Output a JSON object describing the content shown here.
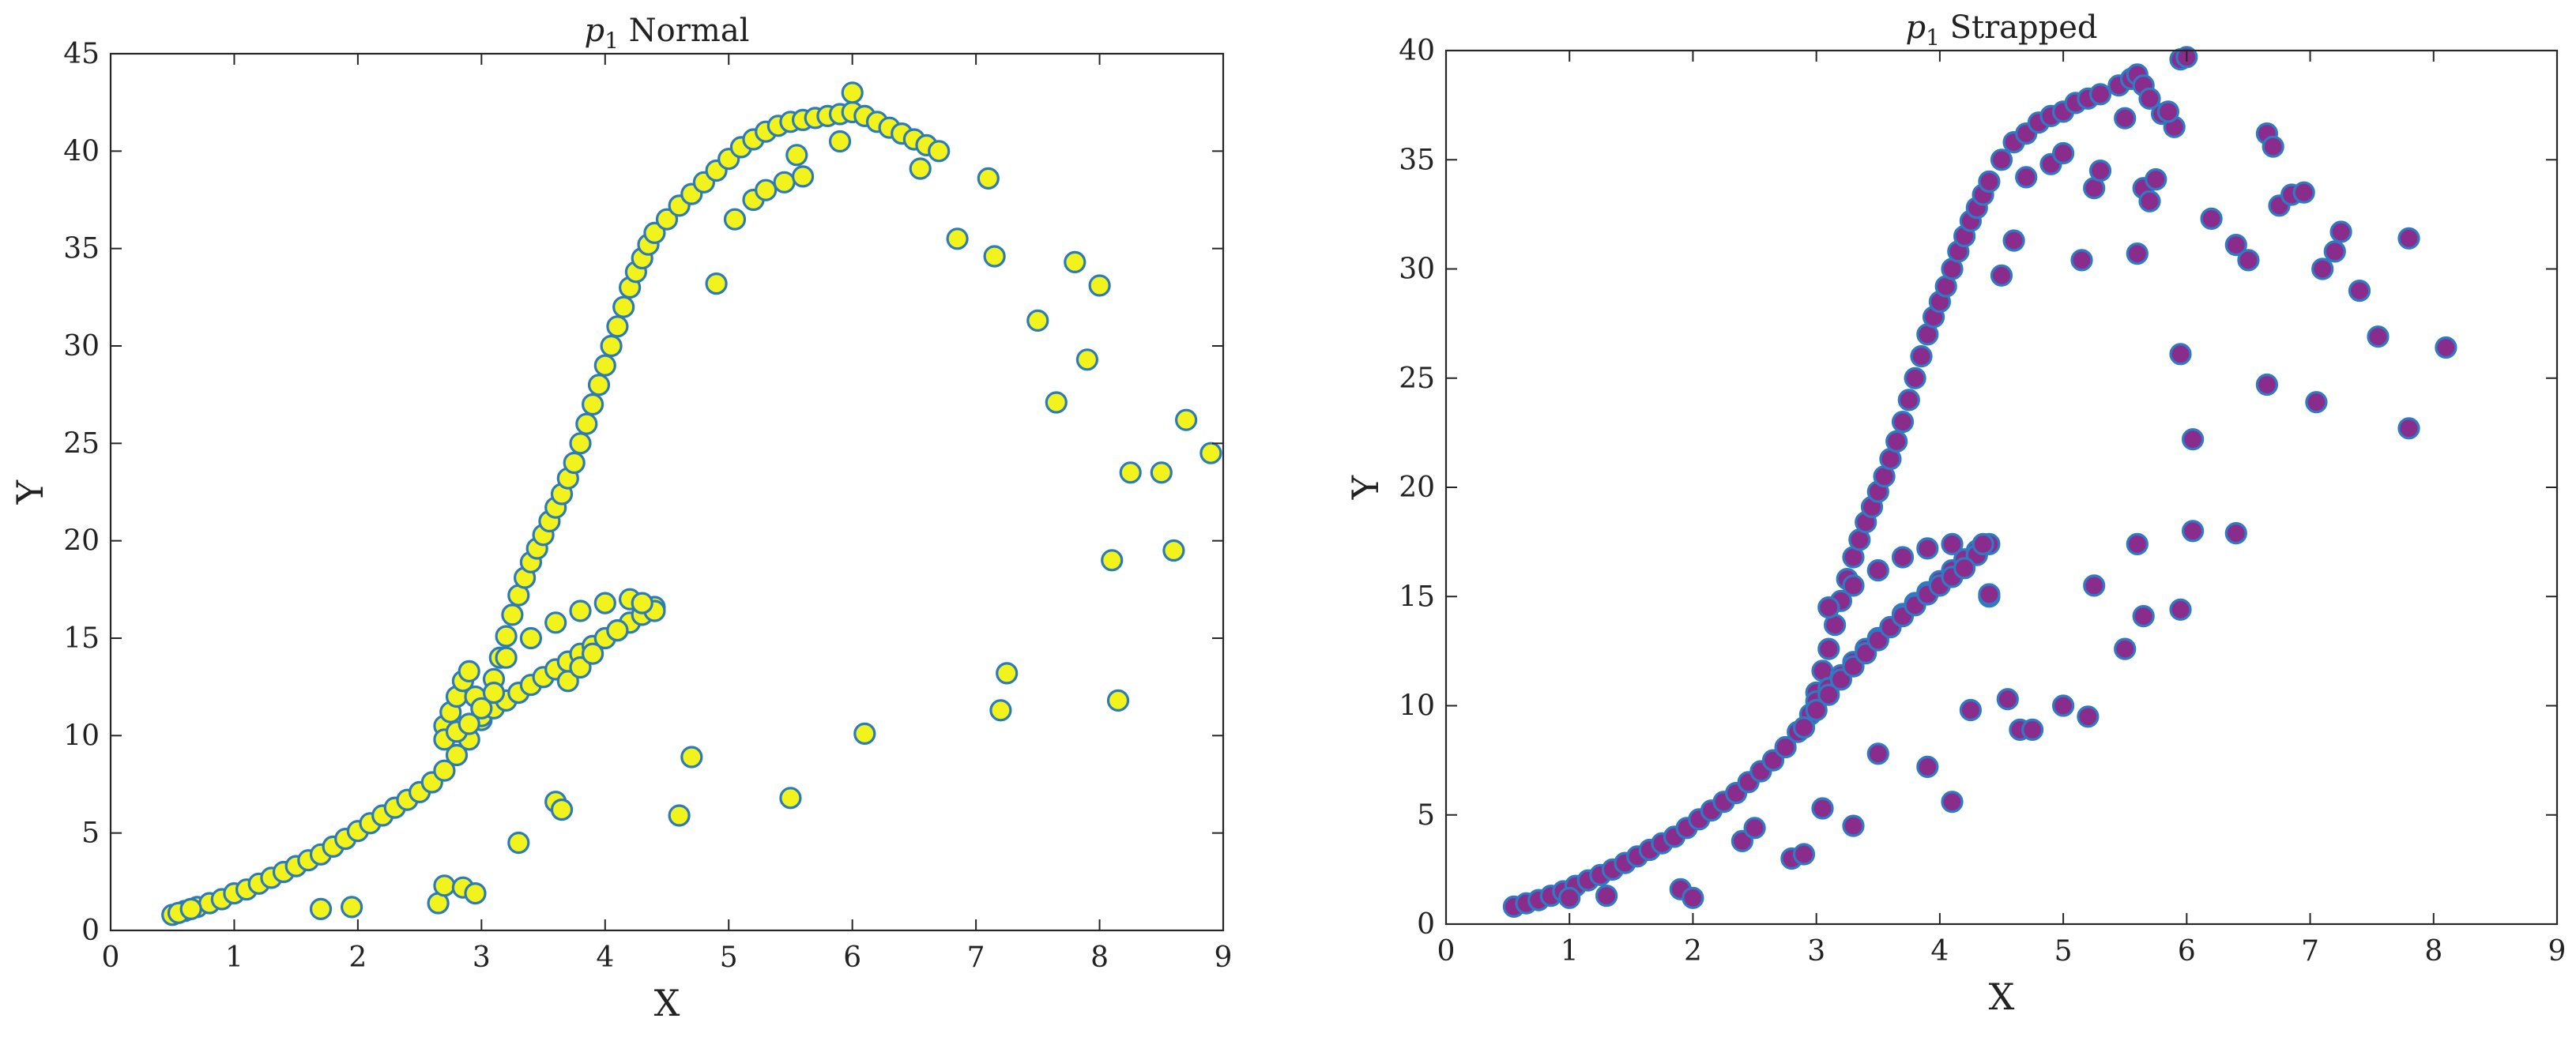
{
  "chart_data": [
    {
      "type": "scatter",
      "title_symbol": "p",
      "title_sub": "1",
      "title_rest": " Normal",
      "xlabel": "X",
      "ylabel": "Y",
      "xlim": [
        0,
        9
      ],
      "ylim": [
        0,
        45
      ],
      "xticks": [
        0,
        1,
        2,
        3,
        4,
        5,
        6,
        7,
        8,
        9
      ],
      "yticks": [
        0,
        5,
        10,
        15,
        20,
        25,
        30,
        35,
        40,
        45
      ],
      "marker_fill": "#f2f21c",
      "marker_edge": "#2b7bb9",
      "x": [
        0.5,
        0.6,
        0.7,
        0.8,
        0.9,
        1.0,
        1.1,
        1.2,
        1.3,
        1.4,
        1.5,
        1.6,
        1.7,
        1.8,
        1.9,
        2.0,
        2.1,
        2.2,
        2.3,
        2.4,
        2.5,
        2.6,
        2.7,
        2.8,
        2.9,
        3.0,
        3.05,
        3.1,
        3.15,
        3.2,
        3.25,
        3.3,
        3.35,
        3.4,
        3.45,
        3.5,
        3.55,
        3.6,
        3.65,
        3.7,
        3.75,
        3.8,
        3.85,
        3.9,
        3.95,
        4.0,
        4.05,
        4.1,
        4.15,
        4.2,
        4.25,
        4.3,
        4.35,
        4.4,
        4.5,
        4.6,
        4.7,
        4.8,
        4.9,
        5.0,
        5.1,
        5.2,
        5.3,
        5.4,
        5.5,
        5.6,
        5.7,
        5.8,
        5.9,
        6.0,
        6.1,
        6.2,
        6.3,
        6.4,
        6.5,
        6.6,
        6.7,
        3.0,
        3.1,
        3.2,
        3.3,
        3.4,
        3.5,
        3.6,
        3.7,
        3.8,
        3.9,
        4.0,
        4.1,
        4.2,
        4.3,
        4.4,
        3.2,
        3.4,
        3.6,
        3.8,
        4.0,
        4.2,
        4.4,
        2.7,
        2.75,
        2.8,
        2.85,
        2.9,
        2.95,
        2.7,
        2.8,
        2.9,
        3.0,
        3.1,
        3.7,
        3.8,
        3.9,
        4.1,
        4.3,
        0.55,
        0.65,
        1.7,
        1.95,
        2.65,
        2.7,
        2.85,
        2.95,
        3.3,
        3.6,
        3.65,
        4.6,
        4.7,
        5.5,
        6.1,
        6.55,
        6.85,
        7.1,
        7.15,
        7.2,
        7.25,
        7.5,
        7.65,
        7.8,
        7.9,
        8.0,
        8.1,
        8.15,
        8.25,
        8.5,
        8.6,
        8.7,
        8.9,
        5.2,
        5.45,
        5.6,
        5.9,
        6.0,
        4.9,
        5.05,
        5.3,
        5.55
      ],
      "y": [
        0.8,
        1.0,
        1.2,
        1.4,
        1.6,
        1.9,
        2.1,
        2.4,
        2.7,
        3.0,
        3.3,
        3.6,
        3.9,
        4.3,
        4.7,
        5.1,
        5.5,
        5.9,
        6.3,
        6.7,
        7.1,
        7.6,
        8.2,
        9.0,
        9.8,
        10.8,
        11.8,
        12.9,
        14.0,
        15.1,
        16.2,
        17.2,
        18.1,
        18.9,
        19.6,
        20.3,
        21.0,
        21.7,
        22.4,
        23.2,
        24.0,
        25.0,
        26.0,
        27.0,
        28.0,
        29.0,
        30.0,
        31.0,
        32.0,
        33.0,
        33.8,
        34.5,
        35.2,
        35.8,
        36.5,
        37.2,
        37.8,
        38.4,
        39.0,
        39.6,
        40.2,
        40.6,
        41.0,
        41.3,
        41.5,
        41.6,
        41.7,
        41.8,
        41.9,
        42.0,
        41.8,
        41.5,
        41.2,
        40.9,
        40.6,
        40.3,
        40.0,
        11.0,
        11.4,
        11.8,
        12.2,
        12.6,
        13.0,
        13.4,
        13.8,
        14.2,
        14.6,
        15.0,
        15.4,
        15.8,
        16.2,
        16.6,
        14.0,
        15.0,
        15.8,
        16.4,
        16.8,
        17.0,
        16.4,
        10.5,
        11.2,
        12.0,
        12.8,
        13.3,
        12.0,
        9.8,
        10.2,
        10.6,
        11.4,
        12.2,
        12.8,
        13.5,
        14.2,
        15.4,
        16.8,
        0.9,
        1.1,
        1.1,
        1.2,
        1.4,
        2.3,
        2.2,
        1.9,
        4.5,
        6.6,
        6.2,
        5.9,
        8.9,
        6.8,
        10.1,
        39.1,
        35.5,
        38.6,
        34.6,
        11.3,
        13.2,
        31.3,
        27.1,
        34.3,
        29.3,
        33.1,
        19.0,
        11.8,
        23.5,
        23.5,
        19.5,
        26.2,
        24.5,
        37.5,
        38.4,
        38.7,
        40.5,
        43.0,
        33.2,
        36.5,
        38.0,
        39.8
      ]
    },
    {
      "type": "scatter",
      "title_symbol": "p",
      "title_sub": "1",
      "title_rest": " Strapped",
      "xlabel": "X",
      "ylabel": "Y",
      "xlim": [
        0,
        9
      ],
      "ylim": [
        0,
        40
      ],
      "xticks": [
        0,
        1,
        2,
        3,
        4,
        5,
        6,
        7,
        8,
        9
      ],
      "yticks": [
        0,
        5,
        10,
        15,
        20,
        25,
        30,
        35,
        40
      ],
      "marker_fill": "#8a2c8c",
      "marker_edge": "#2e7bc4",
      "x": [
        0.55,
        0.65,
        0.75,
        0.85,
        0.95,
        1.05,
        1.15,
        1.25,
        1.35,
        1.45,
        1.55,
        1.65,
        1.75,
        1.85,
        1.95,
        2.05,
        2.15,
        2.25,
        2.35,
        2.45,
        2.55,
        2.65,
        2.75,
        2.85,
        2.95,
        3.0,
        3.05,
        3.1,
        3.15,
        3.2,
        3.25,
        3.3,
        3.35,
        3.4,
        3.45,
        3.5,
        3.55,
        3.6,
        3.65,
        3.7,
        3.75,
        3.8,
        3.85,
        3.9,
        3.95,
        4.0,
        4.05,
        4.1,
        4.15,
        4.2,
        4.25,
        4.3,
        4.35,
        4.4,
        4.5,
        4.6,
        4.7,
        4.8,
        4.9,
        5.0,
        5.1,
        5.2,
        5.3,
        5.45,
        5.55,
        5.6,
        5.65,
        5.7,
        5.8,
        5.9,
        5.95,
        6.0,
        3.0,
        3.1,
        3.2,
        3.3,
        3.4,
        3.5,
        3.6,
        3.7,
        3.8,
        3.9,
        4.0,
        4.1,
        4.2,
        4.3,
        4.4,
        3.1,
        3.3,
        3.5,
        3.7,
        3.9,
        4.1,
        4.3,
        2.9,
        3.0,
        3.1,
        3.2,
        3.3,
        3.4,
        3.5,
        3.6,
        3.7,
        3.8,
        3.9,
        4.0,
        4.1,
        4.2,
        4.4,
        4.5,
        4.6,
        4.7,
        4.9,
        5.0,
        5.15,
        5.25,
        5.3,
        5.5,
        5.6,
        5.65,
        5.7,
        5.75,
        5.85,
        6.2,
        6.4,
        6.5,
        6.65,
        6.7,
        6.75,
        6.85,
        6.95,
        7.1,
        7.2,
        7.25,
        7.4,
        7.55,
        7.8,
        8.1,
        5.95,
        6.05,
        6.65,
        7.05,
        7.8,
        1.0,
        1.3,
        1.9,
        2.0,
        2.4,
        2.5,
        2.8,
        2.9,
        3.05,
        3.3,
        3.5,
        3.9,
        4.1,
        4.25,
        4.35,
        4.4,
        4.55,
        4.65,
        4.75,
        5.0,
        5.2,
        5.25,
        5.5,
        5.6,
        5.65,
        5.95,
        6.05,
        6.4
      ],
      "y": [
        0.8,
        0.95,
        1.1,
        1.3,
        1.5,
        1.75,
        2.0,
        2.25,
        2.5,
        2.8,
        3.1,
        3.4,
        3.7,
        4.0,
        4.4,
        4.8,
        5.2,
        5.6,
        6.0,
        6.5,
        7.0,
        7.5,
        8.1,
        8.8,
        9.6,
        10.6,
        11.6,
        12.6,
        13.7,
        14.8,
        15.8,
        16.8,
        17.6,
        18.4,
        19.1,
        19.8,
        20.5,
        21.3,
        22.1,
        23.0,
        24.0,
        25.0,
        26.0,
        27.0,
        27.8,
        28.5,
        29.2,
        30.0,
        30.8,
        31.5,
        32.2,
        32.8,
        33.4,
        34.0,
        35.0,
        35.8,
        36.2,
        36.7,
        37.0,
        37.2,
        37.6,
        37.8,
        38.0,
        38.4,
        38.7,
        38.9,
        38.4,
        37.8,
        37.1,
        36.5,
        39.6,
        39.7,
        10.2,
        10.8,
        11.4,
        12.0,
        12.6,
        13.1,
        13.6,
        14.2,
        14.7,
        15.2,
        15.7,
        16.2,
        16.7,
        17.1,
        17.4,
        14.5,
        15.5,
        16.2,
        16.8,
        17.2,
        17.4,
        16.9,
        9.0,
        9.8,
        10.5,
        11.2,
        11.8,
        12.4,
        13.0,
        13.6,
        14.1,
        14.6,
        15.1,
        15.5,
        15.9,
        16.3,
        15.0,
        29.7,
        31.3,
        34.2,
        34.8,
        35.3,
        30.4,
        33.7,
        34.5,
        36.9,
        30.7,
        33.7,
        33.1,
        34.1,
        37.2,
        32.3,
        31.1,
        30.4,
        36.2,
        35.6,
        32.9,
        33.4,
        33.5,
        30.0,
        30.8,
        31.7,
        29.0,
        26.9,
        31.4,
        26.4,
        26.1,
        22.2,
        24.7,
        23.9,
        22.7,
        1.2,
        1.3,
        1.6,
        1.2,
        3.8,
        4.4,
        3.0,
        3.2,
        5.3,
        4.5,
        7.8,
        7.2,
        5.6,
        9.8,
        17.4,
        15.1,
        10.3,
        8.9,
        8.9,
        10.0,
        9.5,
        15.5,
        12.6,
        17.4,
        14.1,
        14.4,
        18.0,
        17.9
      ]
    }
  ]
}
